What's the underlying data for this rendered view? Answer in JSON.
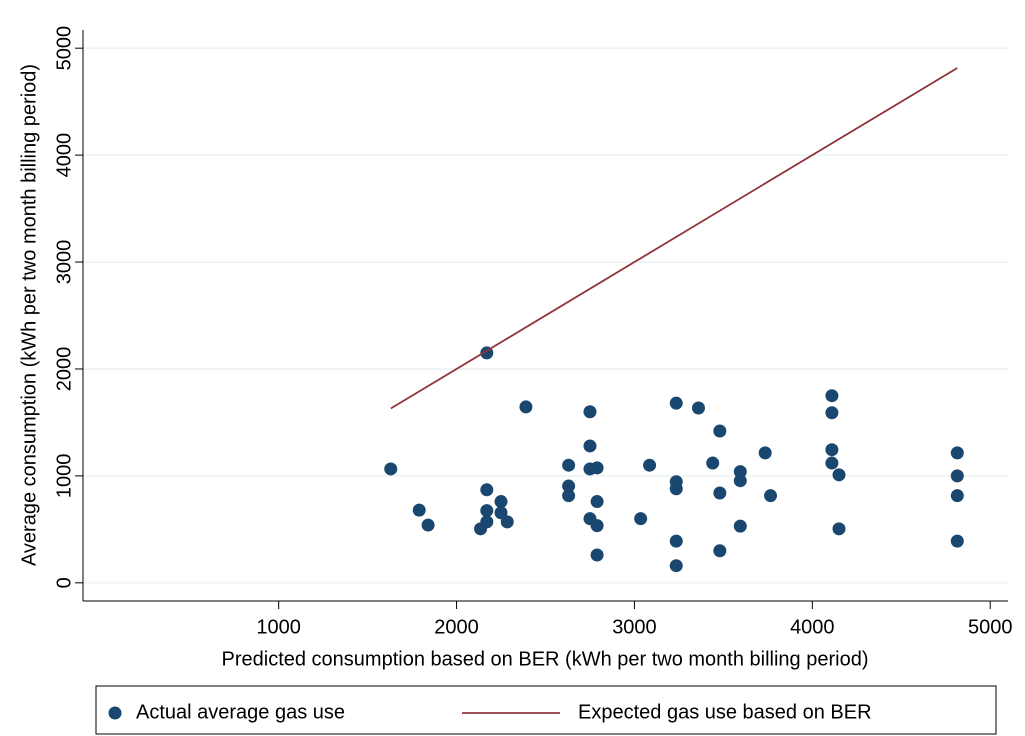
{
  "chart_data": {
    "type": "scatter",
    "x_label": "Predicted consumption based on BER (kWh per two month billing period)",
    "y_label": "Average consumption (kWh per two month billing period)",
    "xlim": [
      -100,
      5100
    ],
    "xticks": [
      1000,
      2000,
      3000,
      4000,
      5000
    ],
    "ylim": [
      -170,
      5170
    ],
    "yticks": [
      0,
      1000,
      2000,
      3000,
      4000,
      5000
    ],
    "grid": true,
    "legend": "bottom",
    "series": [
      {
        "name": "Actual average gas use",
        "kind": "scatter",
        "color": "#1a476f",
        "x": [
          1630,
          1790,
          1840,
          2135,
          2170,
          2170,
          2170,
          2170,
          2250,
          2250,
          2285,
          2390,
          2630,
          2630,
          2630,
          2750,
          2750,
          2750,
          2750,
          2790,
          2790,
          2790,
          2790,
          3035,
          3085,
          3235,
          3235,
          3235,
          3235,
          3235,
          3360,
          3440,
          3480,
          3480,
          3480,
          3595,
          3595,
          3595,
          3735,
          3765,
          4110,
          4110,
          4110,
          4110,
          4150,
          4150,
          4815,
          4815,
          4815,
          4815
        ],
        "values": [
          1065,
          680,
          540,
          505,
          2150,
          870,
          675,
          570,
          760,
          655,
          570,
          1645,
          1100,
          905,
          815,
          1600,
          1280,
          1065,
          600,
          1075,
          760,
          535,
          260,
          600,
          1100,
          1680,
          945,
          880,
          390,
          160,
          1635,
          1120,
          1420,
          840,
          300,
          1040,
          955,
          530,
          1215,
          815,
          1750,
          1590,
          1245,
          1120,
          1010,
          505,
          1215,
          1000,
          815,
          390
        ]
      },
      {
        "name": "Expected gas use based on BER",
        "kind": "line",
        "color": "#90353b",
        "x": [
          1630,
          4815
        ],
        "values": [
          1630,
          4815
        ]
      }
    ]
  }
}
